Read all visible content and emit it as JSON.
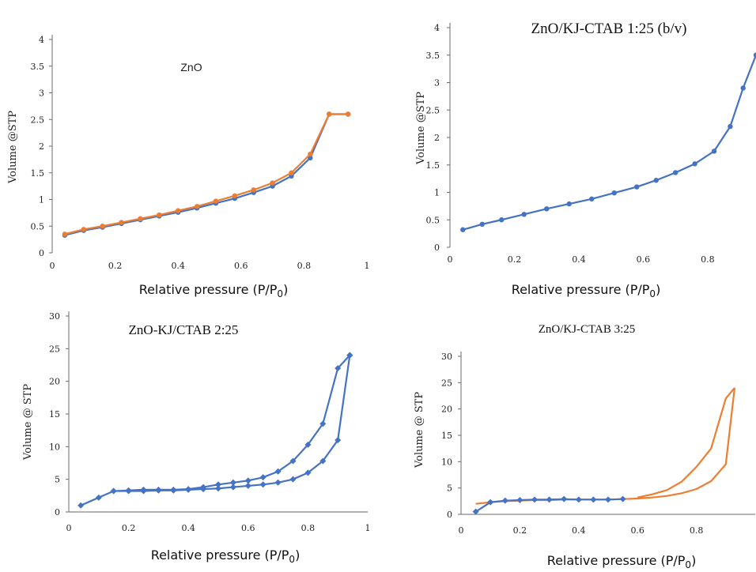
{
  "chart_data": [
    {
      "type": "line",
      "title": "ZnO",
      "ylabel": "Volume @STP",
      "xlabel": "Relative pressure (P/P",
      "xlabel_sub": "0",
      "xlabel_close": ")",
      "xlim": [
        0,
        1
      ],
      "ylim": [
        0,
        4
      ],
      "xticks": [
        "0",
        "0.2",
        "0.4",
        "0.6",
        "0.8",
        "1"
      ],
      "yticks": [
        "0",
        "0.5",
        "1",
        "1.5",
        "2",
        "2.5",
        "3",
        "3.5",
        "4"
      ],
      "series": [
        {
          "color": "#4472c4",
          "marker": "dot",
          "x": [
            0.04,
            0.1,
            0.16,
            0.22,
            0.28,
            0.34,
            0.4,
            0.46,
            0.52,
            0.58,
            0.64,
            0.7,
            0.76,
            0.82,
            0.88,
            0.94
          ],
          "y": [
            0.33,
            0.42,
            0.48,
            0.55,
            0.62,
            0.69,
            0.76,
            0.84,
            0.93,
            1.02,
            1.13,
            1.25,
            1.44,
            1.78,
            2.6,
            2.6
          ]
        },
        {
          "color": "#ed7d31",
          "marker": "dot",
          "x": [
            0.04,
            0.1,
            0.16,
            0.22,
            0.28,
            0.34,
            0.4,
            0.46,
            0.52,
            0.58,
            0.64,
            0.7,
            0.76,
            0.82,
            0.88,
            0.94
          ],
          "y": [
            0.35,
            0.44,
            0.5,
            0.57,
            0.64,
            0.71,
            0.79,
            0.87,
            0.97,
            1.07,
            1.18,
            1.31,
            1.5,
            1.85,
            2.6,
            2.6
          ]
        }
      ]
    },
    {
      "type": "line",
      "title": "ZnO/KJ-CTAB  1:25  (b/v)",
      "ylabel": "Volume @STP",
      "xlabel": "Relative pressure (P/P",
      "xlabel_sub": "0",
      "xlabel_close": ")",
      "xlim": [
        0,
        0.95
      ],
      "ylim": [
        0,
        4
      ],
      "xticks": [
        "0",
        "0.2",
        "0.4",
        "0.6",
        "0.8"
      ],
      "yticks": [
        "0",
        "0.5",
        "1",
        "1.5",
        "2",
        "2.5",
        "3",
        "3.5",
        "4"
      ],
      "series": [
        {
          "color": "#4472c4",
          "marker": "dot",
          "x": [
            0.04,
            0.1,
            0.16,
            0.23,
            0.3,
            0.37,
            0.44,
            0.51,
            0.58,
            0.64,
            0.7,
            0.76,
            0.82,
            0.87,
            0.91,
            0.95
          ],
          "y": [
            0.32,
            0.42,
            0.5,
            0.6,
            0.7,
            0.79,
            0.88,
            0.99,
            1.1,
            1.22,
            1.36,
            1.52,
            1.75,
            2.2,
            2.9,
            3.5
          ]
        }
      ]
    },
    {
      "type": "line",
      "title": "ZnO-KJ/CTAB  2:25",
      "ylabel": "Volume  @ STP",
      "xlabel": "Relative pressure (P/P",
      "xlabel_sub": "0",
      "xlabel_close": ")",
      "xlim": [
        0,
        1
      ],
      "ylim": [
        0,
        30
      ],
      "xticks": [
        "0",
        "0.2",
        "0.4",
        "0.6",
        "0.8",
        "1"
      ],
      "yticks": [
        "0",
        "5",
        "10",
        "15",
        "20",
        "25",
        "30"
      ],
      "series": [
        {
          "color": "#4472c4",
          "marker": "diamond",
          "x": [
            0.04,
            0.1,
            0.15,
            0.2,
            0.25,
            0.3,
            0.35,
            0.4,
            0.45,
            0.5,
            0.55,
            0.6,
            0.65,
            0.7,
            0.75,
            0.8,
            0.85,
            0.9,
            0.94
          ],
          "y": [
            1.0,
            2.2,
            3.2,
            3.2,
            3.2,
            3.3,
            3.3,
            3.4,
            3.5,
            3.6,
            3.8,
            4.0,
            4.2,
            4.5,
            5.0,
            6.0,
            7.8,
            11.0,
            24.0
          ]
        },
        {
          "color": "#4472c4",
          "marker": "diamond",
          "x": [
            0.94,
            0.9,
            0.85,
            0.8,
            0.75,
            0.7,
            0.65,
            0.6,
            0.55,
            0.5,
            0.45,
            0.4,
            0.35,
            0.3,
            0.25,
            0.2,
            0.15
          ],
          "y": [
            24.0,
            22.0,
            13.5,
            10.3,
            7.8,
            6.2,
            5.3,
            4.8,
            4.5,
            4.2,
            3.8,
            3.5,
            3.4,
            3.4,
            3.4,
            3.3,
            3.2
          ]
        }
      ]
    },
    {
      "type": "line",
      "title": "ZnO/KJ-CTAB 3:25",
      "ylabel": "Volume  @ STP",
      "xlabel": "Relative pressure (P/P",
      "xlabel_sub": "0",
      "xlabel_close": ")",
      "xlim": [
        0,
        1
      ],
      "ylim": [
        0,
        30
      ],
      "xticks": [
        "0",
        "0.2",
        "0.4",
        "0.6",
        "0.8"
      ],
      "yticks": [
        "0",
        "5",
        "10",
        "15",
        "20",
        "25",
        "30"
      ],
      "series": [
        {
          "color": "#ed7d31",
          "marker": "none",
          "x": [
            0.05,
            0.1,
            0.15,
            0.2,
            0.25,
            0.3,
            0.35,
            0.4,
            0.45,
            0.5,
            0.55,
            0.6,
            0.65,
            0.7,
            0.75,
            0.8,
            0.85,
            0.9,
            0.93
          ],
          "y": [
            2.0,
            2.3,
            2.5,
            2.6,
            2.7,
            2.7,
            2.8,
            2.8,
            2.8,
            2.8,
            2.9,
            3.0,
            3.2,
            3.5,
            4.0,
            4.8,
            6.3,
            9.5,
            24.0
          ]
        },
        {
          "color": "#ed7d31",
          "marker": "none",
          "x": [
            0.93,
            0.9,
            0.85,
            0.8,
            0.75,
            0.7,
            0.65,
            0.6
          ],
          "y": [
            24.0,
            22.0,
            12.5,
            9.0,
            6.2,
            4.6,
            3.8,
            3.2
          ]
        },
        {
          "color": "#4472c4",
          "marker": "diamond",
          "x": [
            0.05,
            0.1,
            0.15,
            0.2,
            0.25,
            0.3,
            0.35,
            0.4,
            0.45,
            0.5,
            0.55
          ],
          "y": [
            0.5,
            2.3,
            2.6,
            2.7,
            2.8,
            2.8,
            2.9,
            2.8,
            2.8,
            2.8,
            2.9
          ]
        }
      ]
    }
  ]
}
